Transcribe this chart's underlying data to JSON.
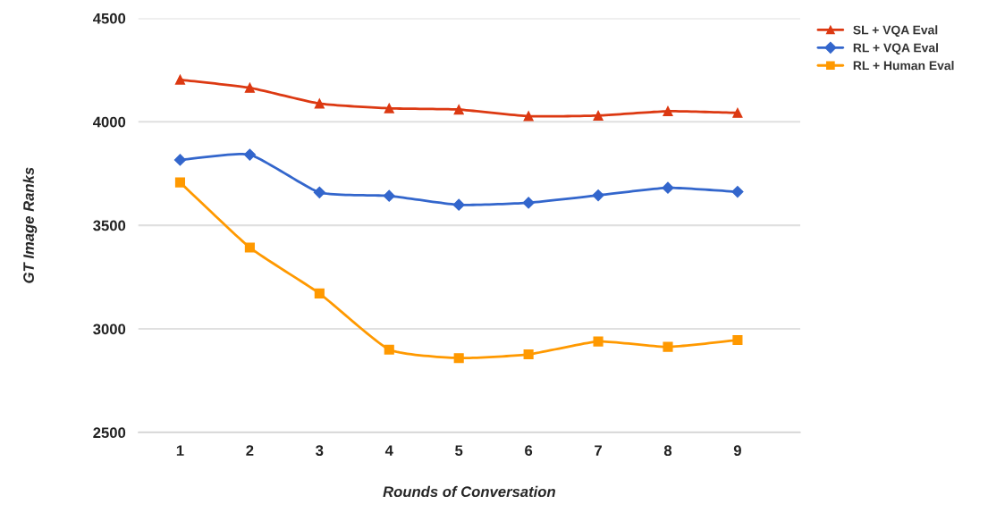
{
  "chart_data": {
    "type": "line",
    "xlabel": "Rounds of Conversation",
    "ylabel": "GT Image Ranks",
    "categories": [
      "1",
      "2",
      "3",
      "4",
      "5",
      "6",
      "7",
      "8",
      "9"
    ],
    "series": [
      {
        "name": "SL + VQA Eval",
        "color": "#dc3912",
        "marker": "triangle",
        "values": [
          4203,
          4164,
          4088,
          4065,
          4059,
          4027,
          4030,
          4051,
          4043
        ]
      },
      {
        "name": "RL + VQA Eval",
        "color": "#3366cc",
        "marker": "diamond",
        "values": [
          3816,
          3841,
          3659,
          3642,
          3599,
          3609,
          3645,
          3681,
          3662
        ]
      },
      {
        "name": "RL + Human Eval",
        "color": "#ff9900",
        "marker": "square",
        "values": [
          3707,
          3393,
          3171,
          2900,
          2859,
          2877,
          2939,
          2913,
          2946
        ]
      }
    ],
    "ylim": [
      2500,
      4500
    ],
    "yticks": [
      2500,
      3000,
      3500,
      4000,
      4500
    ],
    "grid": "y",
    "legend": "top right",
    "line_style": "solid"
  }
}
